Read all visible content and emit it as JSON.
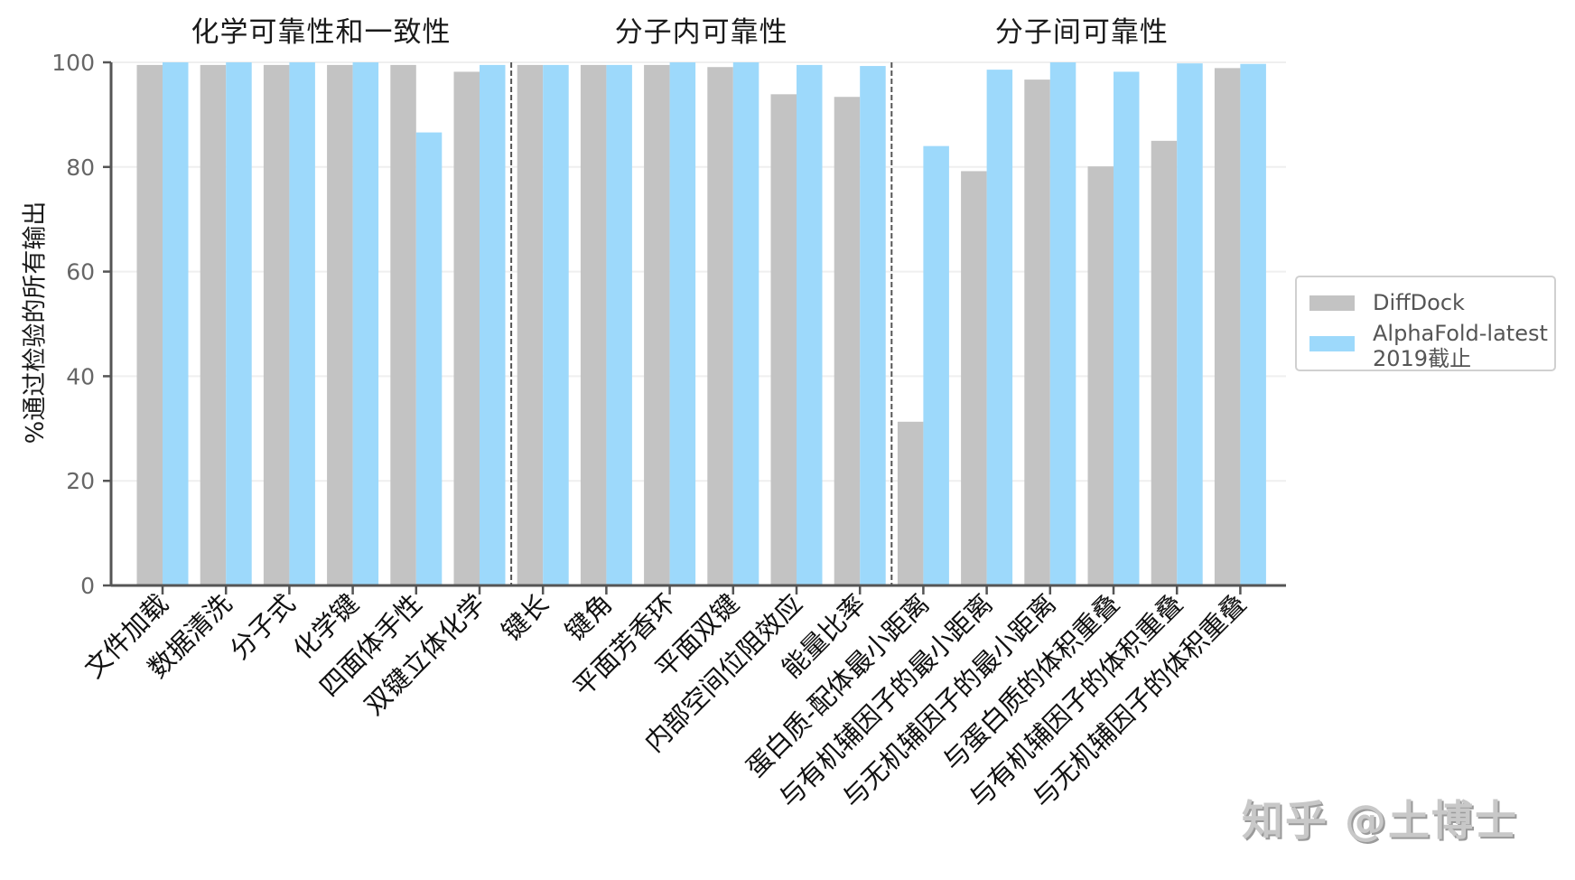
{
  "chart_data": {
    "type": "bar",
    "title": "",
    "group_titles": [
      "化学可靠性和一致性",
      "分子内可靠性",
      "分子间可靠性"
    ],
    "groups": [
      {
        "title": "化学可靠性和一致性",
        "start": 0,
        "end": 5
      },
      {
        "title": "分子内可靠性",
        "start": 6,
        "end": 11
      },
      {
        "title": "分子间可靠性",
        "start": 12,
        "end": 17
      }
    ],
    "categories": [
      "文件加载",
      "数据清洗",
      "分子式",
      "化学键",
      "四面体手性",
      "双键立体化学",
      "键长",
      "键角",
      "平面芳香环",
      "平面双键",
      "内部空间位阻效应",
      "能量比率",
      "蛋白质-配体最小距离",
      "与有机辅因子的最小距离",
      "与无机辅因子的最小距离",
      "与蛋白质的体积重叠",
      "与有机辅因子的体积重叠",
      "与无机辅因子的体积重叠"
    ],
    "series": [
      {
        "name": "DiffDock",
        "color": "#c3c3c3",
        "values": [
          99.5,
          99.5,
          99.5,
          99.5,
          99.5,
          98.2,
          99.5,
          99.5,
          99.5,
          99.1,
          93.9,
          93.4,
          31.3,
          79.2,
          96.7,
          80.1,
          85.0,
          98.9
        ]
      },
      {
        "name": "AlphaFold-latest 2019截止",
        "color": "#9dd9fb",
        "values": [
          100,
          100,
          100,
          100,
          86.6,
          99.5,
          99.5,
          99.5,
          100,
          100,
          99.5,
          99.3,
          84.0,
          98.6,
          100,
          98.2,
          99.8,
          99.7
        ]
      }
    ],
    "xlabel": "",
    "ylabel": "%通过检验的所有输出",
    "ylim": [
      0,
      100
    ],
    "yticks": [
      0,
      20,
      40,
      60,
      80,
      100
    ],
    "grid": true,
    "legend_position": "right",
    "legend": [
      "DiffDock",
      "AlphaFold-latest\n2019截止"
    ]
  },
  "legend": {
    "item1": "DiffDock",
    "item2_line1": "AlphaFold-latest",
    "item2_line2": "2019截止"
  },
  "watermark": "知乎 @土博士"
}
